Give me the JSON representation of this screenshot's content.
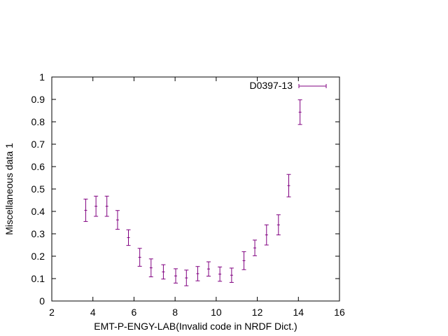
{
  "chart_data": {
    "type": "scatter",
    "xlabel": "EMT-P-ENGY-LAB(Invalid code in NRDF Dict.)",
    "ylabel": "Miscellaneous data 1",
    "xlim": [
      2,
      16
    ],
    "ylim": [
      0,
      1
    ],
    "xticks": [
      2,
      4,
      6,
      8,
      10,
      12,
      14,
      16
    ],
    "yticks": [
      0,
      0.1,
      0.2,
      0.3,
      0.4,
      0.5,
      0.6,
      0.7,
      0.8,
      0.9,
      1
    ],
    "ytick_labels": [
      "0",
      "0.1",
      "0.2",
      "0.3",
      "0.4",
      "0.5",
      "0.6",
      "0.7",
      "0.8",
      "0.9",
      "1"
    ],
    "legend_position": "top-right",
    "grid": false,
    "series": [
      {
        "name": "D0397-13",
        "color": "#800080",
        "points": [
          {
            "x": 3.65,
            "y": 0.405,
            "err": 0.05
          },
          {
            "x": 4.15,
            "y": 0.423,
            "err": 0.045
          },
          {
            "x": 4.68,
            "y": 0.423,
            "err": 0.045
          },
          {
            "x": 5.2,
            "y": 0.362,
            "err": 0.042
          },
          {
            "x": 5.73,
            "y": 0.283,
            "err": 0.035
          },
          {
            "x": 6.28,
            "y": 0.195,
            "err": 0.04
          },
          {
            "x": 6.83,
            "y": 0.148,
            "err": 0.04
          },
          {
            "x": 7.43,
            "y": 0.13,
            "err": 0.032
          },
          {
            "x": 8.03,
            "y": 0.112,
            "err": 0.032
          },
          {
            "x": 8.55,
            "y": 0.103,
            "err": 0.035
          },
          {
            "x": 9.1,
            "y": 0.122,
            "err": 0.032
          },
          {
            "x": 9.63,
            "y": 0.143,
            "err": 0.032
          },
          {
            "x": 10.18,
            "y": 0.12,
            "err": 0.032
          },
          {
            "x": 10.75,
            "y": 0.115,
            "err": 0.032
          },
          {
            "x": 11.35,
            "y": 0.18,
            "err": 0.04
          },
          {
            "x": 11.88,
            "y": 0.237,
            "err": 0.035
          },
          {
            "x": 12.45,
            "y": 0.295,
            "err": 0.045
          },
          {
            "x": 13.03,
            "y": 0.34,
            "err": 0.045
          },
          {
            "x": 13.53,
            "y": 0.515,
            "err": 0.05
          },
          {
            "x": 14.08,
            "y": 0.843,
            "err": 0.055
          }
        ]
      }
    ]
  }
}
